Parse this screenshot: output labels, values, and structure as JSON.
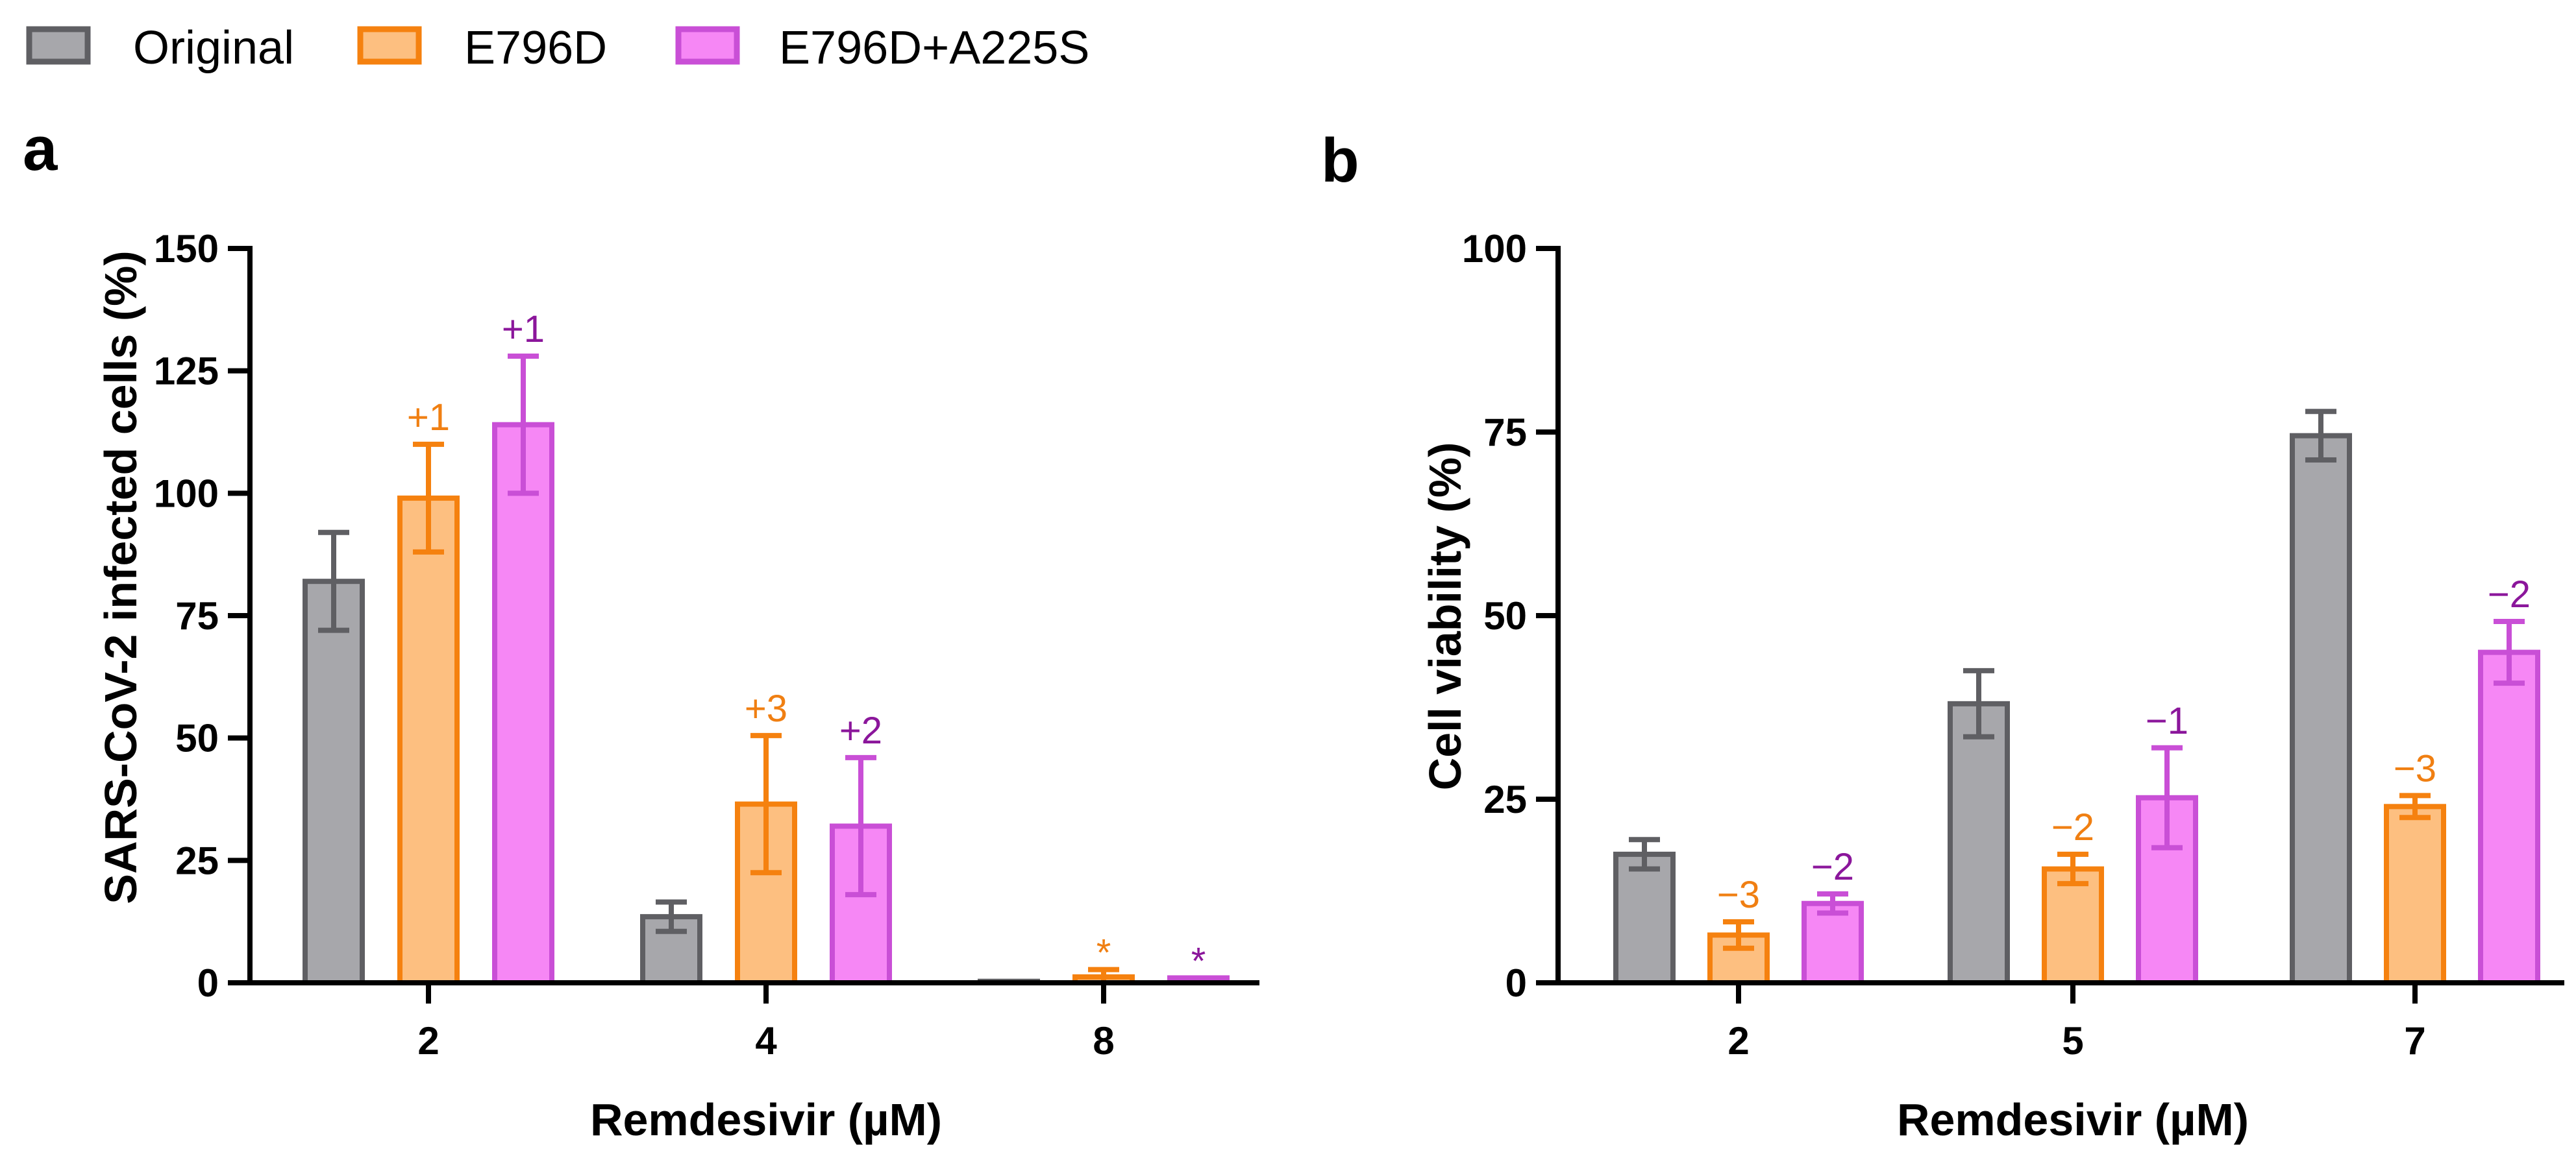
{
  "legend": [
    {
      "name": "Original",
      "fill": "#a7a7ab",
      "stroke": "#5f5f63"
    },
    {
      "name": "E796D",
      "fill": "#fdbf80",
      "stroke": "#f5810f"
    },
    {
      "name": "E796D+A225S",
      "fill": "#f687f5",
      "stroke": "#c94fd6"
    }
  ],
  "chart_data": [
    {
      "panel": "a",
      "type": "bar",
      "xlabel": "Remdesivir (µM)",
      "ylabel": "SARS-CoV-2 infected cells (%)",
      "ylim": [
        0,
        150
      ],
      "yticks": [
        0,
        25,
        50,
        75,
        100,
        125,
        150
      ],
      "categories": [
        "2",
        "4",
        "8"
      ],
      "series": [
        {
          "name": "Original",
          "values": [
            82,
            13.5,
            0.3
          ],
          "errors": [
            10,
            3,
            0
          ],
          "annotations": [
            "",
            "",
            ""
          ]
        },
        {
          "name": "E796D",
          "values": [
            99,
            36.5,
            1.2
          ],
          "errors": [
            11,
            14,
            1.5
          ],
          "annotations": [
            "+1",
            "+3",
            "*"
          ]
        },
        {
          "name": "E796D+A225S",
          "values": [
            114,
            32,
            1.0
          ],
          "errors": [
            14,
            14,
            0
          ],
          "annotations": [
            "+1",
            "+2",
            "*"
          ]
        }
      ],
      "annotation_colors": [
        "#5f5f63",
        "#f07f12",
        "#8b169b"
      ]
    },
    {
      "panel": "b",
      "type": "bar",
      "xlabel": "Remdesivir (µM)",
      "ylabel": "Cell viability (%)",
      "ylim": [
        0,
        100
      ],
      "yticks": [
        0,
        25,
        50,
        75,
        100
      ],
      "categories": [
        "2",
        "5",
        "7"
      ],
      "series": [
        {
          "name": "Original",
          "values": [
            17.5,
            38,
            74.5
          ],
          "errors": [
            2,
            4.5,
            3.3
          ],
          "annotations": [
            "",
            "",
            ""
          ]
        },
        {
          "name": "E796D",
          "values": [
            6.5,
            15.5,
            24
          ],
          "errors": [
            1.8,
            2,
            1.5
          ],
          "annotations": [
            "−3",
            "−2",
            "−3"
          ]
        },
        {
          "name": "E796D+A225S",
          "values": [
            10.8,
            25.2,
            45
          ],
          "errors": [
            1.3,
            6.8,
            4.2
          ],
          "annotations": [
            "−2",
            "−1",
            "−2"
          ]
        }
      ],
      "annotation_colors": [
        "#5f5f63",
        "#f07f12",
        "#8b169b"
      ]
    }
  ]
}
